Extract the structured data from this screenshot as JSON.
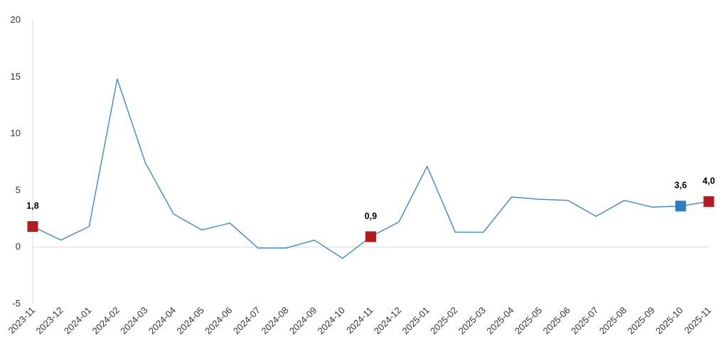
{
  "chart_data": {
    "type": "line",
    "title": "",
    "xlabel": "",
    "ylabel": "",
    "ylim": [
      -5,
      20
    ],
    "yticks": [
      20,
      15,
      10,
      5,
      0,
      -5
    ],
    "grid": false,
    "categories": [
      "2023-11",
      "2023-12",
      "2024-01",
      "2024-02",
      "2024-03",
      "2024-04",
      "2024-05",
      "2024-06",
      "2024-07",
      "2024-08",
      "2024-09",
      "2024-10",
      "2024-11",
      "2024-12",
      "2025-01",
      "2025-02",
      "2025-03",
      "2025-04",
      "2025-05",
      "2025-06",
      "2025-07",
      "2025-08",
      "2025-09",
      "2025-10",
      "2025-11"
    ],
    "series": [
      {
        "values": [
          1.8,
          0.6,
          1.8,
          14.8,
          7.4,
          2.9,
          1.5,
          2.1,
          -0.1,
          -0.1,
          0.6,
          -1.0,
          0.9,
          2.2,
          7.1,
          1.3,
          1.3,
          4.4,
          4.2,
          4.1,
          2.7,
          4.1,
          3.5,
          3.6,
          4.0
        ],
        "color": "#4a8fc7"
      }
    ],
    "highlighted_points": [
      {
        "index": 0,
        "label": "1,8",
        "color": "#b01c20"
      },
      {
        "index": 12,
        "label": "0,9",
        "color": "#b01c20"
      },
      {
        "index": 23,
        "label": "3,6",
        "color": "#2f7cc1"
      },
      {
        "index": 24,
        "label": "4,0",
        "color": "#b01c20"
      }
    ]
  }
}
